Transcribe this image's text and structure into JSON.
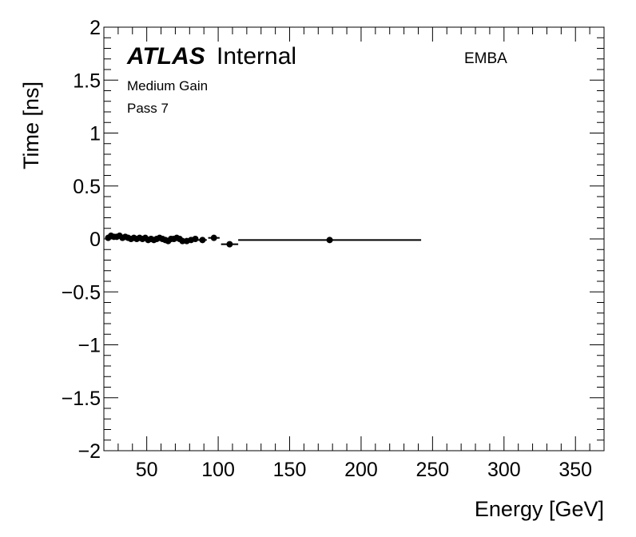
{
  "chart_data": {
    "type": "scatter",
    "title": "",
    "xlabel": "Energy [GeV]",
    "ylabel": "Time [ns]",
    "xlim": [
      20,
      370
    ],
    "ylim": [
      -2,
      2
    ],
    "x_ticks": [
      50,
      100,
      150,
      200,
      250,
      300,
      350
    ],
    "x_tick_labels": [
      "50",
      "100",
      "150",
      "200",
      "250",
      "300",
      "350"
    ],
    "y_ticks": [
      -2,
      -1.5,
      -1,
      -0.5,
      0,
      0.5,
      1,
      1.5,
      2
    ],
    "y_tick_labels": [
      "−2",
      "−1.5",
      "−1",
      "−0.5",
      "0",
      "0.5",
      "1",
      "1.5",
      "2"
    ],
    "grid": false,
    "annotations": {
      "experiment": "ATLAS",
      "status": "Internal",
      "gain": "Medium Gain",
      "pass": "Pass 7",
      "region": "EMBA"
    },
    "series": [
      {
        "points": [
          {
            "x": 23,
            "y": 0.01,
            "xerr": 1
          },
          {
            "x": 25,
            "y": 0.03,
            "xerr": 1
          },
          {
            "x": 27,
            "y": 0.02,
            "xerr": 1
          },
          {
            "x": 29,
            "y": 0.02,
            "xerr": 1
          },
          {
            "x": 31,
            "y": 0.03,
            "xerr": 1
          },
          {
            "x": 33,
            "y": 0.01,
            "xerr": 1
          },
          {
            "x": 35,
            "y": 0.02,
            "xerr": 1
          },
          {
            "x": 37,
            "y": 0.01,
            "xerr": 1
          },
          {
            "x": 39,
            "y": 0.0,
            "xerr": 1
          },
          {
            "x": 41,
            "y": 0.01,
            "xerr": 1
          },
          {
            "x": 43,
            "y": 0.0,
            "xerr": 1
          },
          {
            "x": 45,
            "y": 0.01,
            "xerr": 1
          },
          {
            "x": 47,
            "y": 0.0,
            "xerr": 1
          },
          {
            "x": 49,
            "y": 0.01,
            "xerr": 1
          },
          {
            "x": 51,
            "y": -0.01,
            "xerr": 1
          },
          {
            "x": 53,
            "y": 0.0,
            "xerr": 1
          },
          {
            "x": 55,
            "y": -0.01,
            "xerr": 1
          },
          {
            "x": 57,
            "y": 0.0,
            "xerr": 1
          },
          {
            "x": 59,
            "y": 0.01,
            "xerr": 1
          },
          {
            "x": 61,
            "y": 0.0,
            "xerr": 1
          },
          {
            "x": 63,
            "y": -0.01,
            "xerr": 1
          },
          {
            "x": 65,
            "y": -0.02,
            "xerr": 1
          },
          {
            "x": 67,
            "y": 0.0,
            "xerr": 1
          },
          {
            "x": 69,
            "y": 0.0,
            "xerr": 1
          },
          {
            "x": 71,
            "y": 0.01,
            "xerr": 1
          },
          {
            "x": 73,
            "y": 0.0,
            "xerr": 1
          },
          {
            "x": 75,
            "y": -0.02,
            "xerr": 1
          },
          {
            "x": 78,
            "y": -0.02,
            "xerr": 2
          },
          {
            "x": 81,
            "y": -0.01,
            "xerr": 2
          },
          {
            "x": 84,
            "y": 0.0,
            "xerr": 2
          },
          {
            "x": 89,
            "y": -0.01,
            "xerr": 3
          },
          {
            "x": 97,
            "y": 0.01,
            "xerr": 4
          },
          {
            "x": 108,
            "y": -0.05,
            "xerr": 6
          },
          {
            "x": 178,
            "y": -0.01,
            "xerr": 64
          }
        ]
      }
    ]
  }
}
